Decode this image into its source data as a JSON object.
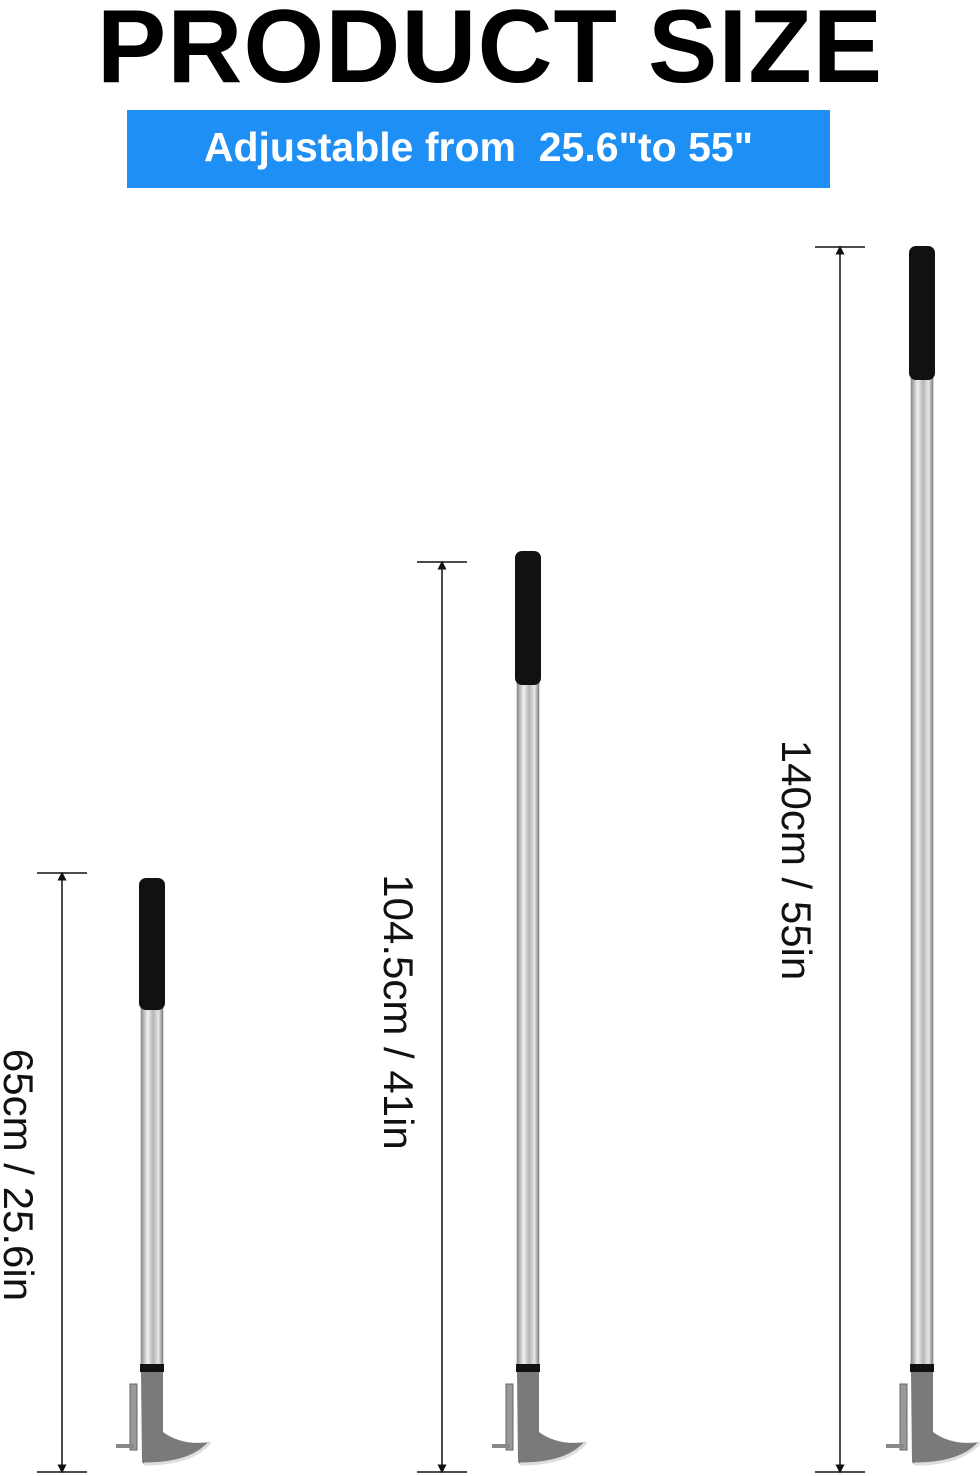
{
  "header": {
    "title": "PRODUCT SIZE",
    "subtitle": "Adjustable from  25.6\"to 55\""
  },
  "colors": {
    "banner": "#1e90f5",
    "grip": "#111111",
    "head": "#7a7a7a"
  },
  "sizes": [
    {
      "label": "65cm / 25.6in"
    },
    {
      "label": "104.5cm / 41in"
    },
    {
      "label": "140cm / 55in"
    }
  ]
}
